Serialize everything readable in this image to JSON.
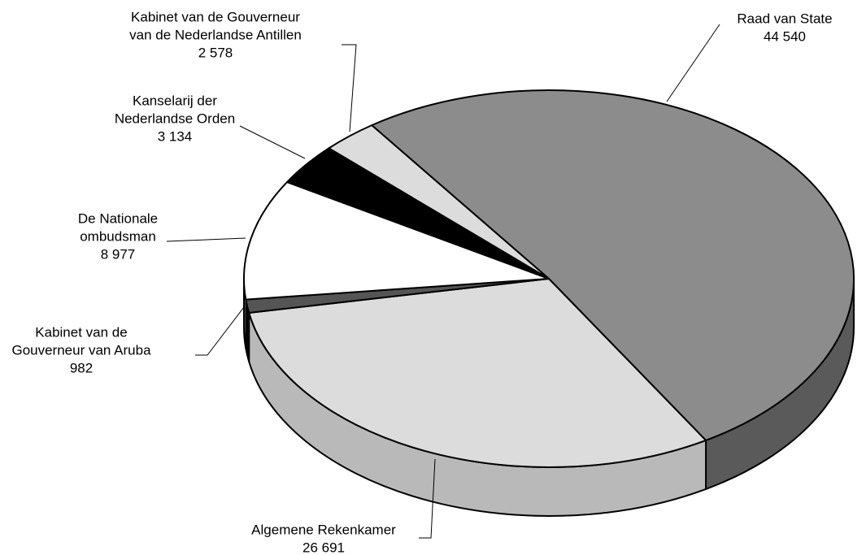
{
  "chart_data": {
    "type": "pie3d",
    "categories": [
      [
        "Raad van State"
      ],
      [
        "Algemene Rekenkamer"
      ],
      [
        "Kabinet van de",
        "Gouverneur van Aruba"
      ],
      [
        "De Nationale",
        "ombudsman"
      ],
      [
        "Kanselarij der",
        "Nederlandse Orden"
      ],
      [
        "Kabinet van de Gouverneur",
        "van de Nederlandse Antillen"
      ]
    ],
    "values": [
      44540,
      26691,
      982,
      8977,
      3134,
      2578
    ],
    "value_labels": [
      "44 540",
      "26 691",
      "982",
      "8 977",
      "3 134",
      "2 578"
    ],
    "colors": [
      "#8c8c8c",
      "#dcdcdc",
      "#555555",
      "#ffffff",
      "#000000",
      "#dcdcdc"
    ],
    "side_colors": [
      "#5a5a5a",
      "#b9b9b9",
      "#000000",
      "#ffffff",
      "#000000",
      "#b9b9b9"
    ]
  }
}
